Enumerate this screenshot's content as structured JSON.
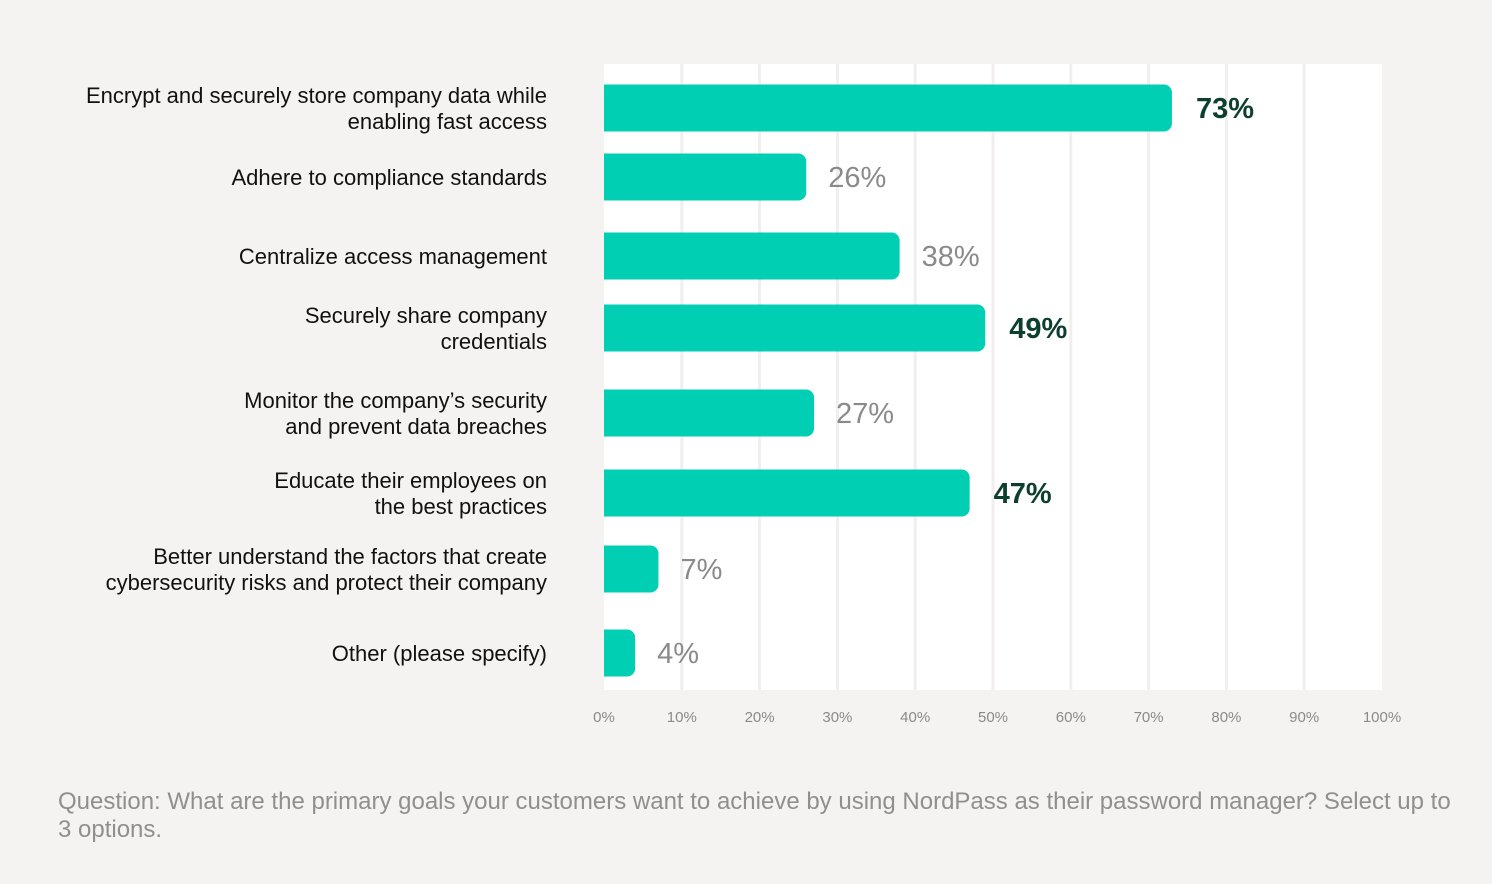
{
  "chart_data": {
    "type": "bar",
    "orientation": "horizontal",
    "categories": [
      [
        "Encrypt and securely store company data while",
        "enabling fast access"
      ],
      [
        "Adhere to compliance standards"
      ],
      [
        "Centralize access management"
      ],
      [
        "Securely share company",
        "credentials"
      ],
      [
        "Monitor the company’s security",
        "and prevent data breaches"
      ],
      [
        "Educate their employees on",
        "the best practices"
      ],
      [
        "Better understand the factors that create",
        "cybersecurity risks and protect their company"
      ],
      [
        "Other (please specify)"
      ]
    ],
    "values": [
      73,
      26,
      38,
      49,
      27,
      47,
      7,
      4
    ],
    "value_labels": [
      "73%",
      "26%",
      "38%",
      "49%",
      "27%",
      "47%",
      "7%",
      "4%"
    ],
    "highlighted": [
      true,
      false,
      false,
      true,
      false,
      true,
      false,
      false
    ],
    "xlim": [
      0,
      100
    ],
    "xticks": [
      "0%",
      "10%",
      "20%",
      "30%",
      "40%",
      "50%",
      "60%",
      "70%",
      "80%",
      "90%",
      "100%"
    ],
    "grid": true,
    "bar_color": "#00cfb4",
    "highlight_label_color": "#0d3f2e",
    "label_color": "#8a8a8a"
  },
  "question": "Question: What are the primary goals your customers want to achieve by using NordPass as their password manager? Select up to 3 options."
}
